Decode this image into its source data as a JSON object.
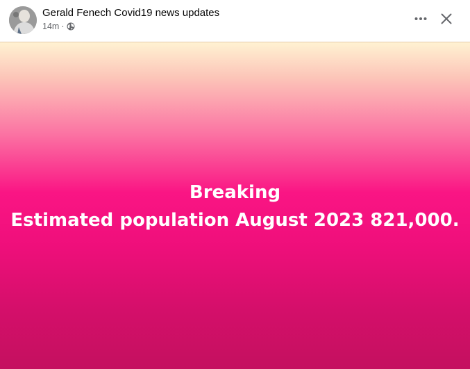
{
  "post": {
    "author": "Gerald Fenech Covid19 news updates",
    "timestamp": "14m",
    "separator": "·",
    "privacy_icon": "globe-icon",
    "headline": "Breaking",
    "body": "Estimated population August 2023 821,000."
  },
  "actions": {
    "more_icon": "more-options-icon",
    "close_icon": "close-icon"
  },
  "colors": {
    "gradient_top": "#fff2d2",
    "gradient_mid": "#fa1584",
    "gradient_bottom": "#c4105f",
    "text_primary": "#050505",
    "text_secondary": "#65676b"
  }
}
